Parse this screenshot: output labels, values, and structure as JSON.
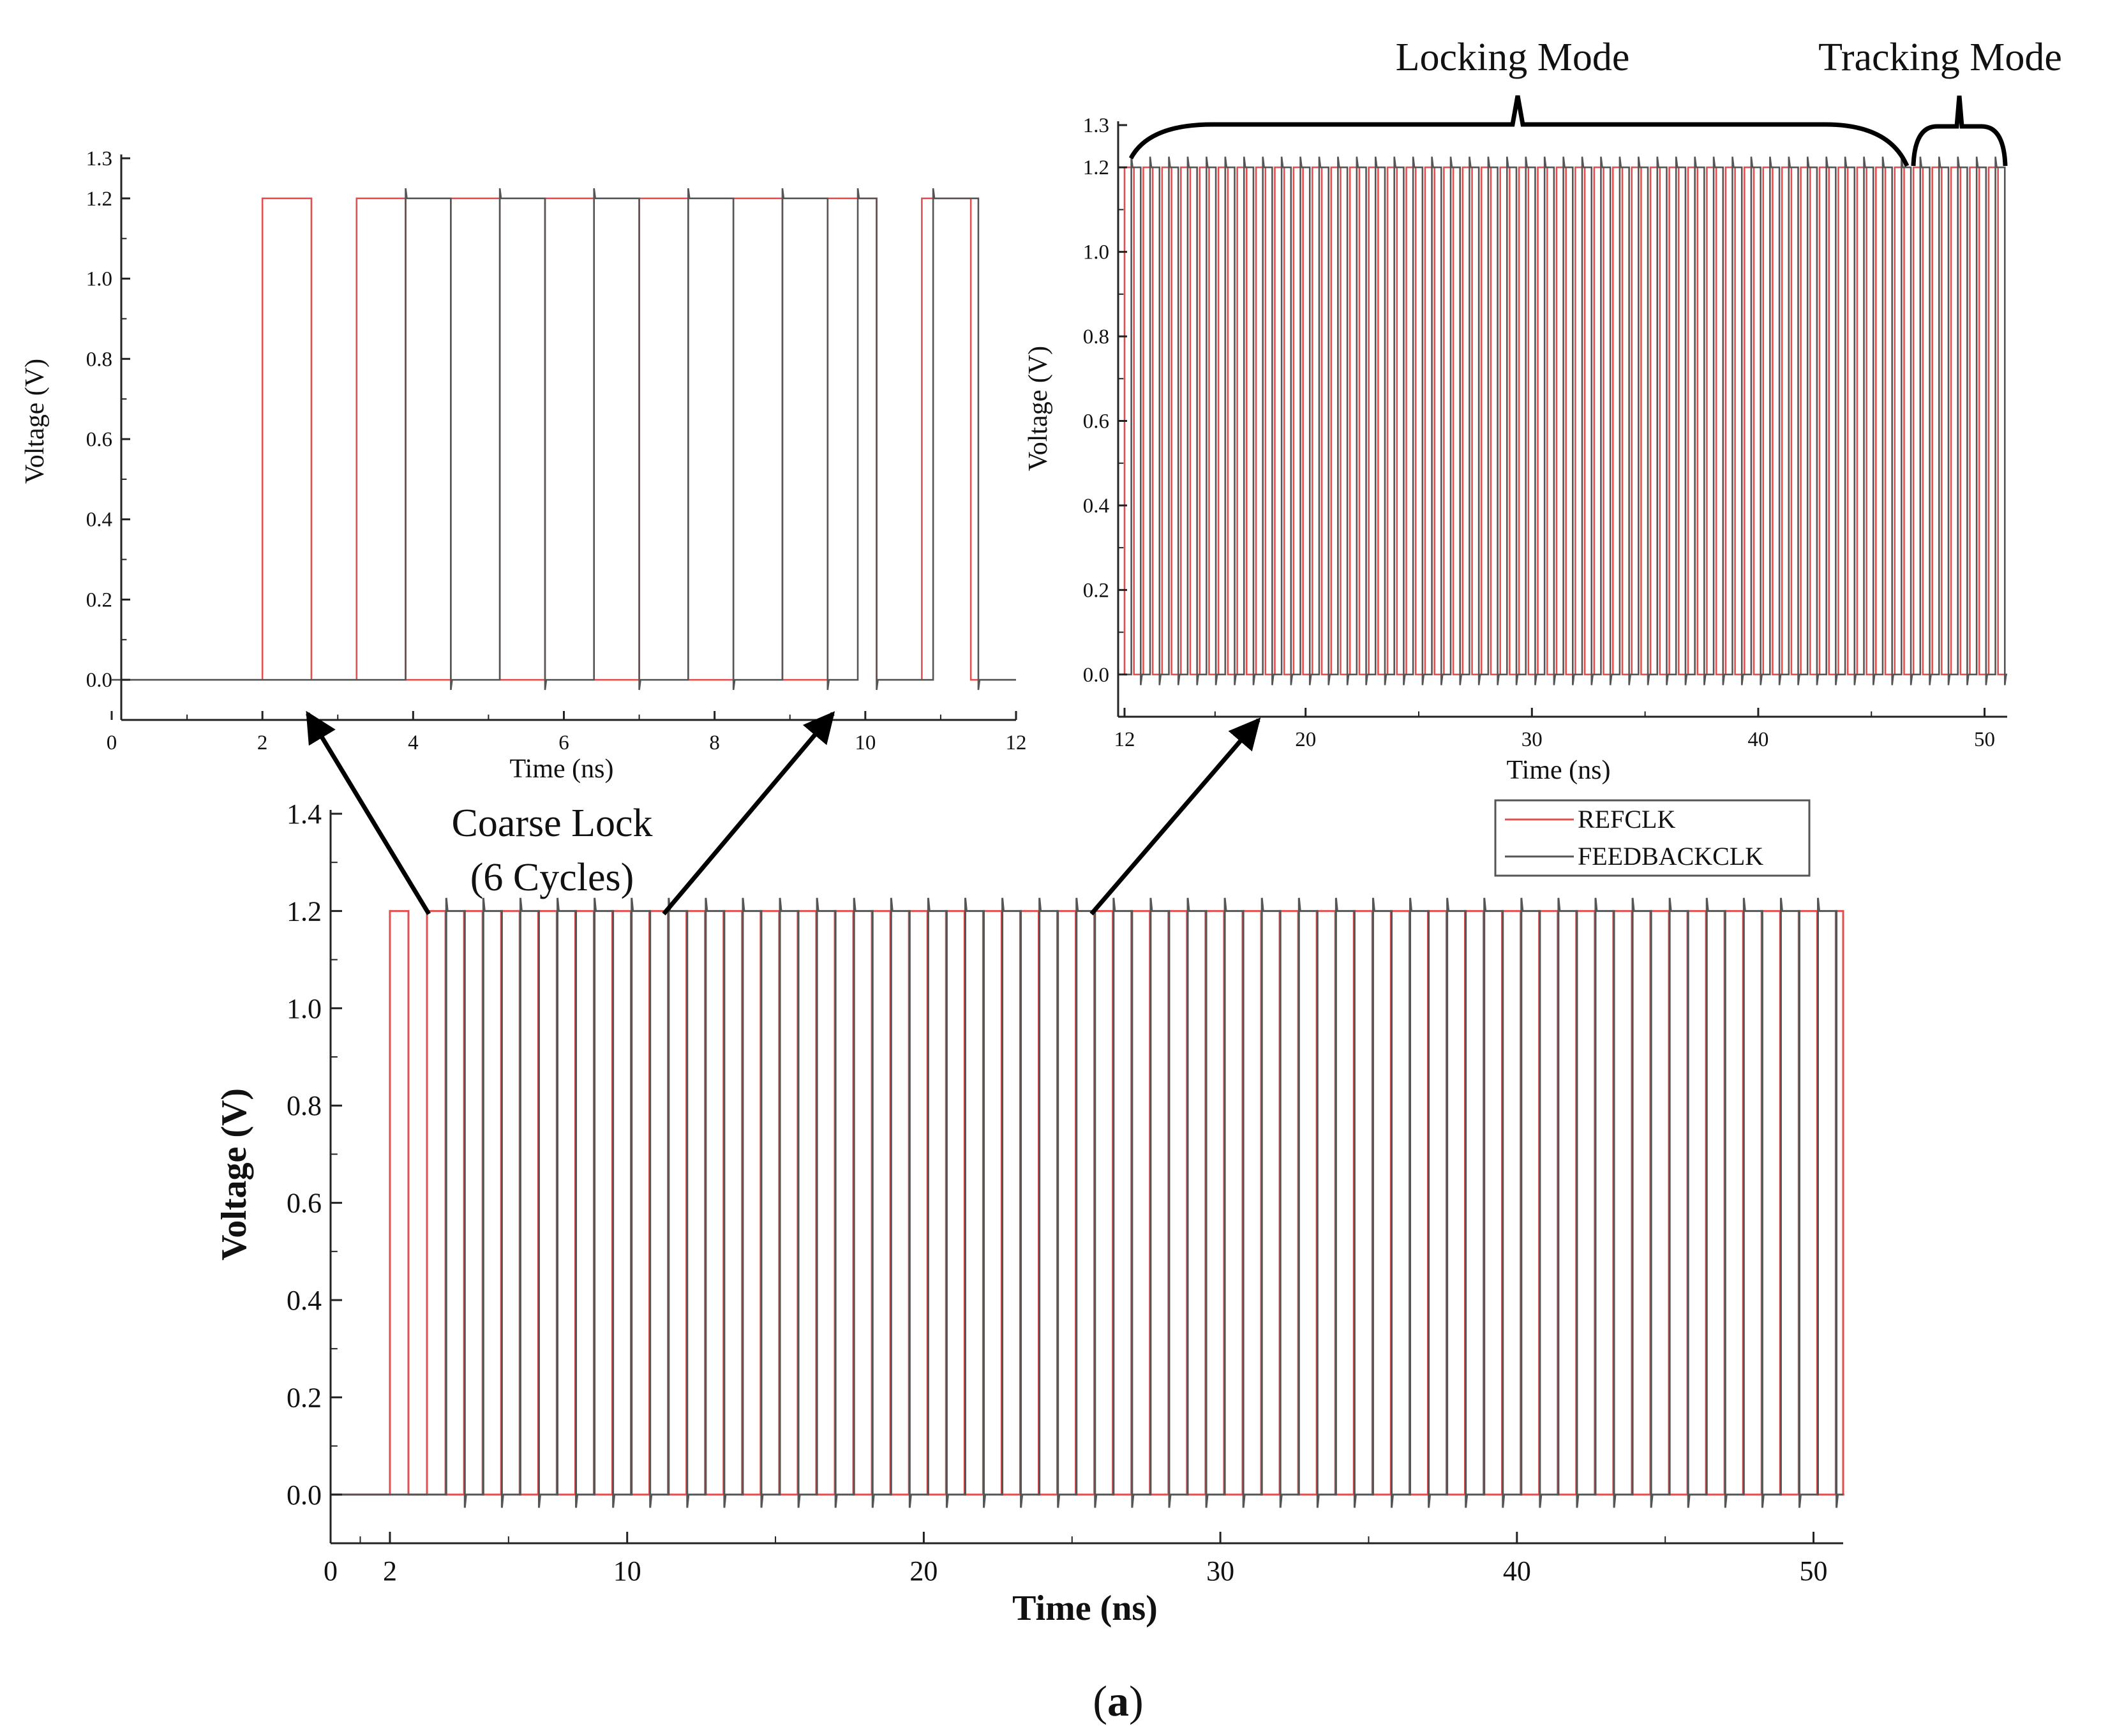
{
  "chart_data": [
    {
      "id": "inset_left",
      "type": "line",
      "title": "",
      "xlabel": "Time (ns)",
      "ylabel": "Voltage (V)",
      "xlim": [
        0,
        12
      ],
      "ylim": [
        -0.1,
        1.3
      ],
      "xticks": [
        "0",
        "2",
        "4",
        "6",
        "8",
        "10",
        "12"
      ],
      "yticks": [
        "0.0",
        "0.2",
        "0.4",
        "0.6",
        "0.8",
        "1.0",
        "1.2",
        "1.3"
      ],
      "grid": false,
      "series": [
        {
          "name": "REFCLK",
          "color": "#e05050",
          "high": 1.2,
          "low": 0.0,
          "pulses": [
            [
              2.0,
              2.65
            ],
            [
              3.25,
              3.9
            ],
            [
              4.5,
              5.15
            ],
            [
              5.75,
              6.4
            ],
            [
              7.0,
              7.65
            ],
            [
              8.25,
              8.9
            ],
            [
              9.5,
              10.15
            ],
            [
              10.75,
              11.4
            ]
          ]
        },
        {
          "name": "FEEDBACKCLK",
          "color": "#555555",
          "high": 1.2,
          "low": 0.0,
          "pulses": [
            [
              3.9,
              4.5
            ],
            [
              5.15,
              5.75
            ],
            [
              6.4,
              7.0
            ],
            [
              7.65,
              8.25
            ],
            [
              8.9,
              9.5
            ],
            [
              9.9,
              10.15
            ],
            [
              10.9,
              11.5
            ]
          ]
        }
      ]
    },
    {
      "id": "inset_right",
      "type": "line",
      "title": "",
      "xlabel": "Time (ns)",
      "ylabel": "Voltage (V)",
      "xlim": [
        12,
        51
      ],
      "ylim": [
        -0.1,
        1.3
      ],
      "xticks": [
        "12",
        "20",
        "30",
        "40",
        "50"
      ],
      "yticks": [
        "0.0",
        "0.2",
        "0.4",
        "0.6",
        "0.8",
        "1.0",
        "1.2",
        "1.3"
      ],
      "grid": false,
      "series": [
        {
          "name": "REFCLK",
          "color": "#e05050",
          "period": 0.83,
          "duty": 0.5,
          "start": 12.0,
          "end": 51.0,
          "high": 1.2,
          "low": 0.0
        },
        {
          "name": "FEEDBACKCLK",
          "color": "#555555",
          "period": 0.83,
          "duty": 0.5,
          "start": 12.3,
          "end": 51.0,
          "high": 1.2,
          "low": 0.0
        }
      ]
    },
    {
      "id": "main",
      "type": "line",
      "title": "",
      "xlabel": "Time (ns)",
      "ylabel": "Voltage (V)",
      "xlim": [
        0,
        51
      ],
      "ylim": [
        -0.1,
        1.4
      ],
      "xticks": [
        "0",
        "2",
        "10",
        "20",
        "30",
        "40",
        "50"
      ],
      "yticks": [
        "0.0",
        "0.2",
        "0.4",
        "0.6",
        "0.8",
        "1.0",
        "1.2",
        "1.4"
      ],
      "grid": false,
      "legend": "top-right",
      "series": [
        {
          "name": "REFCLK",
          "color": "#e05050",
          "period": 1.25,
          "duty": 0.5,
          "start": 2.0,
          "end": 51.0,
          "high": 1.2,
          "low": 0.0
        },
        {
          "name": "FEEDBACKCLK",
          "color": "#555555",
          "period": 1.25,
          "duty": 0.5,
          "start": 3.9,
          "end": 51.0,
          "high": 1.2,
          "low": 0.0
        }
      ]
    }
  ],
  "annotations": {
    "locking_mode": "Locking Mode",
    "tracking_mode": "Tracking Mode",
    "coarse_lock_line1": "Coarse Lock",
    "coarse_lock_line2": "(6 Cycles)"
  },
  "legend": {
    "ref_label": "REFCLK",
    "fb_label": "FEEDBACKCLK"
  },
  "caption": {
    "open": "(",
    "letter": "a",
    "close": ")"
  }
}
